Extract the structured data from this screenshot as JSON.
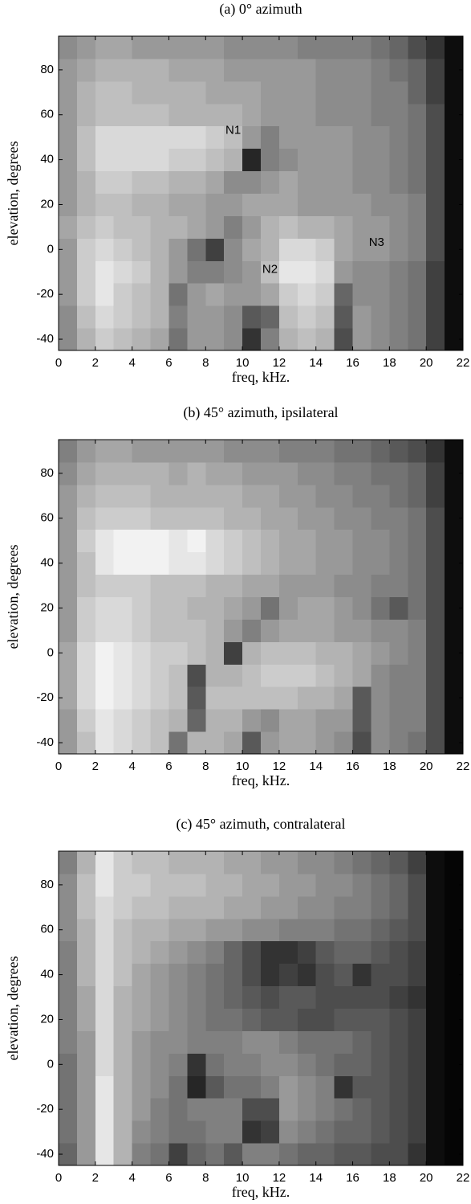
{
  "chart_data": [
    {
      "type": "heatmap",
      "title": "(a) 0° azimuth",
      "xlabel": "freq, kHz.",
      "ylabel": "elevation, degrees",
      "colormap": "gray",
      "x": [
        0,
        1,
        2,
        3,
        4,
        5,
        6,
        7,
        8,
        9,
        10,
        11,
        12,
        13,
        14,
        15,
        16,
        17,
        18,
        19,
        20,
        21,
        22
      ],
      "y": [
        -45,
        -35,
        -25,
        -15,
        -5,
        5,
        15,
        25,
        35,
        45,
        55,
        65,
        75,
        85,
        95
      ],
      "xlim": [
        0,
        22
      ],
      "ylim": [
        -45,
        95
      ],
      "xticks": [
        0,
        2,
        4,
        6,
        8,
        10,
        12,
        14,
        16,
        18,
        20,
        22
      ],
      "yticks": [
        -40,
        -20,
        0,
        20,
        40,
        60,
        80
      ],
      "z": [
        [
          0.55,
          0.7,
          0.8,
          0.75,
          0.7,
          0.65,
          0.45,
          0.6,
          0.6,
          0.55,
          0.2,
          0.5,
          0.7,
          0.75,
          0.7,
          0.3,
          0.6,
          0.55,
          0.5,
          0.45,
          0.25,
          0.05
        ],
        [
          0.55,
          0.75,
          0.85,
          0.8,
          0.75,
          0.7,
          0.5,
          0.6,
          0.6,
          0.55,
          0.35,
          0.4,
          0.75,
          0.8,
          0.75,
          0.35,
          0.6,
          0.55,
          0.5,
          0.45,
          0.25,
          0.05
        ],
        [
          0.6,
          0.8,
          0.9,
          0.8,
          0.75,
          0.7,
          0.45,
          0.6,
          0.65,
          0.6,
          0.6,
          0.65,
          0.8,
          0.85,
          0.8,
          0.4,
          0.55,
          0.55,
          0.5,
          0.45,
          0.25,
          0.05
        ],
        [
          0.6,
          0.8,
          0.9,
          0.85,
          0.8,
          0.7,
          0.6,
          0.5,
          0.5,
          0.55,
          0.6,
          0.75,
          0.9,
          0.9,
          0.85,
          0.6,
          0.55,
          0.55,
          0.5,
          0.45,
          0.25,
          0.05
        ],
        [
          0.6,
          0.8,
          0.85,
          0.8,
          0.75,
          0.7,
          0.6,
          0.45,
          0.25,
          0.55,
          0.65,
          0.7,
          0.85,
          0.85,
          0.8,
          0.65,
          0.6,
          0.6,
          0.55,
          0.5,
          0.3,
          0.05
        ],
        [
          0.65,
          0.75,
          0.8,
          0.75,
          0.75,
          0.7,
          0.7,
          0.65,
          0.6,
          0.5,
          0.6,
          0.7,
          0.75,
          0.7,
          0.7,
          0.65,
          0.6,
          0.6,
          0.55,
          0.5,
          0.3,
          0.05
        ],
        [
          0.6,
          0.7,
          0.75,
          0.75,
          0.7,
          0.7,
          0.65,
          0.65,
          0.6,
          0.6,
          0.65,
          0.65,
          0.65,
          0.6,
          0.6,
          0.6,
          0.6,
          0.55,
          0.55,
          0.5,
          0.3,
          0.05
        ],
        [
          0.6,
          0.7,
          0.8,
          0.8,
          0.75,
          0.75,
          0.7,
          0.7,
          0.65,
          0.55,
          0.55,
          0.6,
          0.65,
          0.6,
          0.6,
          0.6,
          0.55,
          0.55,
          0.5,
          0.45,
          0.3,
          0.05
        ],
        [
          0.6,
          0.75,
          0.85,
          0.85,
          0.85,
          0.85,
          0.8,
          0.8,
          0.75,
          0.7,
          0.15,
          0.5,
          0.55,
          0.6,
          0.6,
          0.6,
          0.55,
          0.55,
          0.5,
          0.45,
          0.3,
          0.05
        ],
        [
          0.6,
          0.75,
          0.85,
          0.85,
          0.85,
          0.85,
          0.85,
          0.85,
          0.8,
          0.75,
          0.6,
          0.5,
          0.6,
          0.6,
          0.6,
          0.6,
          0.55,
          0.55,
          0.5,
          0.45,
          0.3,
          0.05
        ],
        [
          0.6,
          0.7,
          0.75,
          0.75,
          0.75,
          0.75,
          0.7,
          0.7,
          0.7,
          0.7,
          0.65,
          0.6,
          0.6,
          0.6,
          0.55,
          0.55,
          0.55,
          0.5,
          0.5,
          0.45,
          0.3,
          0.05
        ],
        [
          0.6,
          0.7,
          0.75,
          0.75,
          0.7,
          0.7,
          0.7,
          0.7,
          0.65,
          0.65,
          0.65,
          0.6,
          0.6,
          0.6,
          0.55,
          0.55,
          0.55,
          0.5,
          0.5,
          0.4,
          0.25,
          0.05
        ],
        [
          0.6,
          0.65,
          0.7,
          0.7,
          0.7,
          0.7,
          0.65,
          0.65,
          0.65,
          0.6,
          0.6,
          0.6,
          0.6,
          0.6,
          0.55,
          0.55,
          0.55,
          0.5,
          0.45,
          0.4,
          0.25,
          0.05
        ],
        [
          0.55,
          0.6,
          0.65,
          0.65,
          0.6,
          0.6,
          0.6,
          0.6,
          0.6,
          0.55,
          0.55,
          0.55,
          0.55,
          0.5,
          0.5,
          0.5,
          0.5,
          0.45,
          0.4,
          0.3,
          0.2,
          0.05
        ]
      ],
      "annotations": [
        {
          "text": "N1",
          "x": 9.5,
          "y": 53
        },
        {
          "text": "N2",
          "x": 11.5,
          "y": -9
        },
        {
          "text": "N3",
          "x": 17.3,
          "y": 3
        }
      ]
    },
    {
      "type": "heatmap",
      "title": "(b) 45° azimuth, ipsilateral",
      "xlabel": "freq, kHz.",
      "ylabel": "elevation, degrees",
      "colormap": "gray",
      "x": [
        0,
        1,
        2,
        3,
        4,
        5,
        6,
        7,
        8,
        9,
        10,
        11,
        12,
        13,
        14,
        15,
        16,
        17,
        18,
        19,
        20,
        21,
        22
      ],
      "y": [
        -45,
        -35,
        -25,
        -15,
        -5,
        5,
        15,
        25,
        35,
        45,
        55,
        65,
        75,
        85,
        95
      ],
      "xlim": [
        0,
        22
      ],
      "ylim": [
        -45,
        95
      ],
      "xticks": [
        0,
        2,
        4,
        6,
        8,
        10,
        12,
        14,
        16,
        18,
        20,
        22
      ],
      "yticks": [
        -40,
        -20,
        0,
        20,
        40,
        60,
        80
      ],
      "z": [
        [
          0.6,
          0.75,
          0.9,
          0.85,
          0.8,
          0.75,
          0.45,
          0.7,
          0.7,
          0.65,
          0.35,
          0.6,
          0.65,
          0.65,
          0.6,
          0.55,
          0.3,
          0.55,
          0.5,
          0.45,
          0.3,
          0.05
        ],
        [
          0.6,
          0.8,
          0.9,
          0.85,
          0.8,
          0.75,
          0.7,
          0.4,
          0.7,
          0.7,
          0.6,
          0.55,
          0.65,
          0.65,
          0.6,
          0.6,
          0.35,
          0.55,
          0.5,
          0.5,
          0.3,
          0.05
        ],
        [
          0.65,
          0.85,
          0.95,
          0.9,
          0.85,
          0.8,
          0.75,
          0.35,
          0.75,
          0.75,
          0.75,
          0.75,
          0.75,
          0.7,
          0.7,
          0.65,
          0.35,
          0.55,
          0.5,
          0.5,
          0.3,
          0.05
        ],
        [
          0.65,
          0.85,
          0.95,
          0.9,
          0.85,
          0.8,
          0.75,
          0.3,
          0.7,
          0.7,
          0.75,
          0.8,
          0.8,
          0.8,
          0.75,
          0.7,
          0.65,
          0.55,
          0.5,
          0.5,
          0.3,
          0.05
        ],
        [
          0.65,
          0.85,
          0.95,
          0.9,
          0.85,
          0.8,
          0.8,
          0.75,
          0.7,
          0.25,
          0.7,
          0.75,
          0.75,
          0.75,
          0.7,
          0.7,
          0.65,
          0.6,
          0.55,
          0.5,
          0.3,
          0.05
        ],
        [
          0.6,
          0.8,
          0.85,
          0.85,
          0.8,
          0.75,
          0.75,
          0.75,
          0.7,
          0.6,
          0.5,
          0.6,
          0.65,
          0.65,
          0.65,
          0.6,
          0.6,
          0.55,
          0.55,
          0.5,
          0.3,
          0.05
        ],
        [
          0.6,
          0.8,
          0.85,
          0.85,
          0.8,
          0.75,
          0.75,
          0.7,
          0.7,
          0.65,
          0.6,
          0.45,
          0.6,
          0.65,
          0.65,
          0.6,
          0.55,
          0.45,
          0.35,
          0.45,
          0.3,
          0.05
        ],
        [
          0.6,
          0.75,
          0.8,
          0.8,
          0.8,
          0.75,
          0.75,
          0.75,
          0.7,
          0.7,
          0.65,
          0.65,
          0.6,
          0.6,
          0.6,
          0.55,
          0.55,
          0.5,
          0.5,
          0.45,
          0.3,
          0.05
        ],
        [
          0.6,
          0.75,
          0.9,
          0.95,
          0.95,
          0.95,
          0.9,
          0.9,
          0.85,
          0.8,
          0.75,
          0.7,
          0.65,
          0.65,
          0.6,
          0.6,
          0.55,
          0.55,
          0.5,
          0.45,
          0.3,
          0.05
        ],
        [
          0.6,
          0.8,
          0.9,
          0.95,
          0.95,
          0.95,
          0.9,
          0.95,
          0.85,
          0.8,
          0.75,
          0.7,
          0.65,
          0.65,
          0.6,
          0.6,
          0.55,
          0.55,
          0.5,
          0.45,
          0.3,
          0.05
        ],
        [
          0.6,
          0.75,
          0.8,
          0.8,
          0.8,
          0.75,
          0.75,
          0.75,
          0.75,
          0.7,
          0.7,
          0.65,
          0.65,
          0.6,
          0.6,
          0.55,
          0.55,
          0.5,
          0.5,
          0.45,
          0.3,
          0.05
        ],
        [
          0.6,
          0.7,
          0.75,
          0.75,
          0.75,
          0.7,
          0.7,
          0.7,
          0.7,
          0.7,
          0.65,
          0.65,
          0.6,
          0.6,
          0.55,
          0.55,
          0.5,
          0.5,
          0.45,
          0.4,
          0.25,
          0.05
        ],
        [
          0.55,
          0.65,
          0.7,
          0.7,
          0.7,
          0.7,
          0.65,
          0.7,
          0.65,
          0.65,
          0.6,
          0.6,
          0.6,
          0.55,
          0.55,
          0.5,
          0.5,
          0.45,
          0.45,
          0.4,
          0.25,
          0.05
        ],
        [
          0.5,
          0.6,
          0.65,
          0.65,
          0.6,
          0.6,
          0.6,
          0.6,
          0.6,
          0.55,
          0.55,
          0.55,
          0.5,
          0.5,
          0.5,
          0.45,
          0.45,
          0.4,
          0.35,
          0.3,
          0.2,
          0.05
        ]
      ]
    },
    {
      "type": "heatmap",
      "title": "(c) 45° azimuth, contralateral",
      "xlabel": "freq, kHz.",
      "ylabel": "elevation, degrees",
      "colormap": "gray",
      "x": [
        0,
        1,
        2,
        3,
        4,
        5,
        6,
        7,
        8,
        9,
        10,
        11,
        12,
        13,
        14,
        15,
        16,
        17,
        18,
        19,
        20,
        21,
        22
      ],
      "y": [
        -45,
        -35,
        -25,
        -15,
        -5,
        5,
        15,
        25,
        35,
        45,
        55,
        65,
        75,
        85,
        95
      ],
      "xlim": [
        0,
        22
      ],
      "ylim": [
        -45,
        95
      ],
      "xticks": [
        0,
        2,
        4,
        6,
        8,
        10,
        12,
        14,
        16,
        18,
        20,
        22
      ],
      "yticks": [
        -40,
        -20,
        0,
        20,
        40,
        60,
        80
      ],
      "z": [
        [
          0.4,
          0.6,
          0.9,
          0.7,
          0.5,
          0.45,
          0.25,
          0.4,
          0.45,
          0.35,
          0.5,
          0.5,
          0.45,
          0.4,
          0.4,
          0.35,
          0.35,
          0.3,
          0.3,
          0.2,
          0.05,
          0.02
        ],
        [
          0.45,
          0.6,
          0.9,
          0.7,
          0.55,
          0.5,
          0.45,
          0.45,
          0.5,
          0.5,
          0.2,
          0.25,
          0.55,
          0.5,
          0.45,
          0.4,
          0.4,
          0.35,
          0.3,
          0.25,
          0.05,
          0.02
        ],
        [
          0.45,
          0.6,
          0.9,
          0.7,
          0.6,
          0.5,
          0.45,
          0.5,
          0.5,
          0.5,
          0.3,
          0.3,
          0.6,
          0.55,
          0.5,
          0.45,
          0.4,
          0.35,
          0.3,
          0.25,
          0.05,
          0.02
        ],
        [
          0.45,
          0.6,
          0.9,
          0.7,
          0.6,
          0.55,
          0.45,
          0.15,
          0.35,
          0.45,
          0.45,
          0.5,
          0.6,
          0.55,
          0.5,
          0.2,
          0.35,
          0.35,
          0.3,
          0.25,
          0.05,
          0.02
        ],
        [
          0.45,
          0.6,
          0.85,
          0.7,
          0.6,
          0.55,
          0.5,
          0.2,
          0.45,
          0.5,
          0.5,
          0.55,
          0.55,
          0.5,
          0.45,
          0.4,
          0.4,
          0.35,
          0.3,
          0.25,
          0.05,
          0.02
        ],
        [
          0.5,
          0.6,
          0.85,
          0.7,
          0.6,
          0.55,
          0.55,
          0.5,
          0.5,
          0.5,
          0.55,
          0.55,
          0.5,
          0.45,
          0.45,
          0.45,
          0.4,
          0.35,
          0.3,
          0.25,
          0.05,
          0.02
        ],
        [
          0.5,
          0.65,
          0.85,
          0.7,
          0.65,
          0.6,
          0.55,
          0.5,
          0.45,
          0.45,
          0.4,
          0.35,
          0.35,
          0.3,
          0.3,
          0.35,
          0.35,
          0.35,
          0.3,
          0.25,
          0.05,
          0.02
        ],
        [
          0.5,
          0.65,
          0.85,
          0.7,
          0.65,
          0.6,
          0.55,
          0.5,
          0.45,
          0.4,
          0.35,
          0.3,
          0.35,
          0.35,
          0.3,
          0.3,
          0.3,
          0.3,
          0.25,
          0.2,
          0.05,
          0.02
        ],
        [
          0.5,
          0.7,
          0.85,
          0.75,
          0.65,
          0.6,
          0.55,
          0.5,
          0.45,
          0.4,
          0.3,
          0.2,
          0.25,
          0.2,
          0.3,
          0.35,
          0.2,
          0.3,
          0.3,
          0.25,
          0.05,
          0.02
        ],
        [
          0.5,
          0.7,
          0.85,
          0.75,
          0.7,
          0.65,
          0.6,
          0.55,
          0.5,
          0.4,
          0.3,
          0.2,
          0.2,
          0.25,
          0.35,
          0.4,
          0.4,
          0.35,
          0.3,
          0.25,
          0.05,
          0.02
        ],
        [
          0.55,
          0.7,
          0.85,
          0.75,
          0.7,
          0.7,
          0.65,
          0.65,
          0.6,
          0.6,
          0.55,
          0.55,
          0.5,
          0.5,
          0.5,
          0.45,
          0.45,
          0.4,
          0.35,
          0.3,
          0.05,
          0.02
        ],
        [
          0.55,
          0.75,
          0.85,
          0.8,
          0.75,
          0.75,
          0.7,
          0.7,
          0.7,
          0.65,
          0.65,
          0.6,
          0.6,
          0.55,
          0.55,
          0.5,
          0.5,
          0.45,
          0.4,
          0.3,
          0.05,
          0.02
        ],
        [
          0.55,
          0.75,
          0.9,
          0.8,
          0.8,
          0.75,
          0.75,
          0.75,
          0.7,
          0.7,
          0.65,
          0.65,
          0.6,
          0.6,
          0.55,
          0.55,
          0.5,
          0.45,
          0.4,
          0.3,
          0.05,
          0.02
        ],
        [
          0.5,
          0.7,
          0.9,
          0.8,
          0.75,
          0.75,
          0.7,
          0.7,
          0.7,
          0.65,
          0.65,
          0.6,
          0.6,
          0.55,
          0.55,
          0.5,
          0.45,
          0.4,
          0.35,
          0.25,
          0.05,
          0.02
        ]
      ]
    }
  ]
}
